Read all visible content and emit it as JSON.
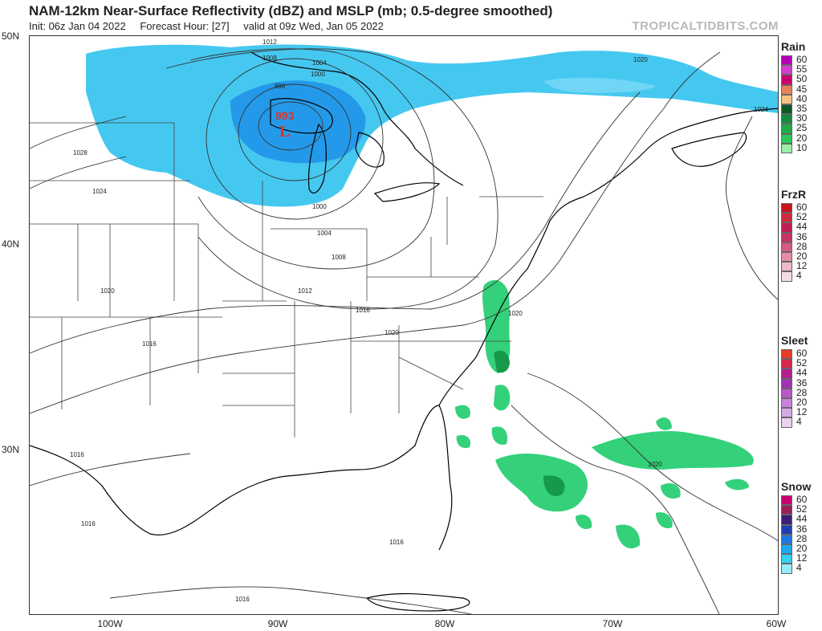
{
  "header": {
    "title": "NAM-12km Near-Surface Reflectivity (dBZ) and MSLP (mb; 0.5-degree smoothed)",
    "init": "Init: 06z Jan 04 2022",
    "forecast_hour": "Forecast Hour: [27]",
    "valid": "valid at 09z Wed, Jan 05 2022",
    "watermark": "TROPICALTIDBITS.COM"
  },
  "map": {
    "latitude_labels": [
      "50N",
      "40N",
      "30N"
    ],
    "longitude_labels": [
      "100W",
      "90W",
      "80W",
      "70W",
      "60W"
    ],
    "low_center": {
      "pressure": "993",
      "symbol": "L",
      "color": "#d9342b"
    },
    "isobar_labels": [
      "1012",
      "1008",
      "1004",
      "1000",
      "996",
      "1000",
      "1004",
      "1008",
      "1012",
      "1016",
      "1020",
      "1020",
      "1024",
      "1028",
      "1024",
      "1020",
      "1016",
      "1016",
      "1016",
      "1016",
      "1016",
      "1020",
      "1020"
    ],
    "colors": {
      "snow_light": "#45c8f0",
      "snow_mid": "#1e90e8",
      "rain_light": "#34d17a",
      "rain_mid": "#169a4a",
      "rain_dark": "#0e6b33"
    }
  },
  "legends": [
    {
      "title": "Rain",
      "levels": [
        "60",
        "55",
        "50",
        "45",
        "40",
        "35",
        "30",
        "25",
        "20",
        "10"
      ],
      "colors": [
        "#b400b4",
        "#d23cd2",
        "#c8006e",
        "#e6825a",
        "#f5c382",
        "#0a5a28",
        "#148c3c",
        "#1eaa46",
        "#2dc85a",
        "#9cf0a5"
      ]
    },
    {
      "title": "FrzR",
      "levels": [
        "60",
        "52",
        "44",
        "36",
        "28",
        "20",
        "12",
        "4"
      ],
      "colors": [
        "#c8141e",
        "#d2283c",
        "#be1e50",
        "#c83264",
        "#d75a82",
        "#e68ca5",
        "#f0b9c8",
        "#f5dce4"
      ]
    },
    {
      "title": "Sleet",
      "levels": [
        "60",
        "52",
        "44",
        "36",
        "28",
        "20",
        "12",
        "4"
      ],
      "colors": [
        "#e63c28",
        "#d7284b",
        "#b41e8c",
        "#a032b4",
        "#b45ac8",
        "#c882dc",
        "#d7aae6",
        "#ebd2f0"
      ]
    },
    {
      "title": "Snow",
      "levels": [
        "60",
        "52",
        "44",
        "36",
        "28",
        "20",
        "12",
        "4"
      ],
      "colors": [
        "#c8006e",
        "#9b1e5a",
        "#3c1e78",
        "#1e3cb4",
        "#1e78dc",
        "#1eaaf0",
        "#32d2f5",
        "#96ecfa"
      ]
    }
  ]
}
